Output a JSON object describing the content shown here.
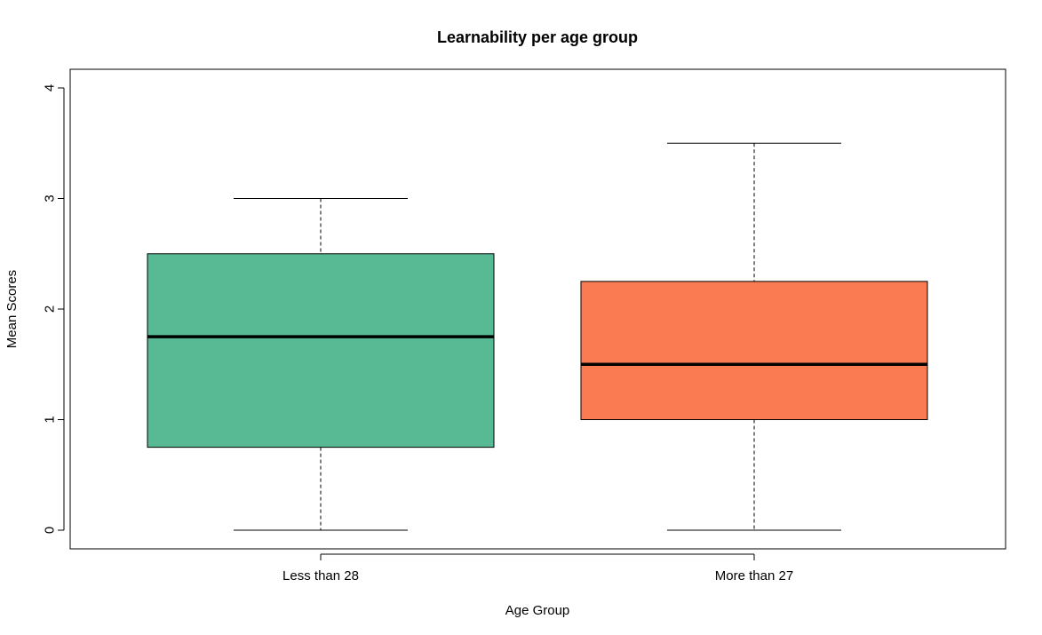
{
  "chart_data": {
    "type": "boxplot",
    "title": "Learnability per age group",
    "xlabel": "Age Group",
    "ylabel": "Mean Scores",
    "ylim": [
      0,
      4
    ],
    "yticks": [
      "0",
      "1",
      "2",
      "3",
      "4"
    ],
    "grid": false,
    "categories": [
      "Less than 28",
      "More than 27"
    ],
    "boxes": [
      {
        "category": "Less than 28",
        "min": 0,
        "q1": 0.75,
        "median": 1.75,
        "q3": 2.5,
        "max": 3,
        "color": "#57BA94"
      },
      {
        "category": "More than 27",
        "min": 0,
        "q1": 1,
        "median": 1.5,
        "q3": 2.25,
        "max": 3.5,
        "color": "#FA7A52"
      }
    ]
  }
}
